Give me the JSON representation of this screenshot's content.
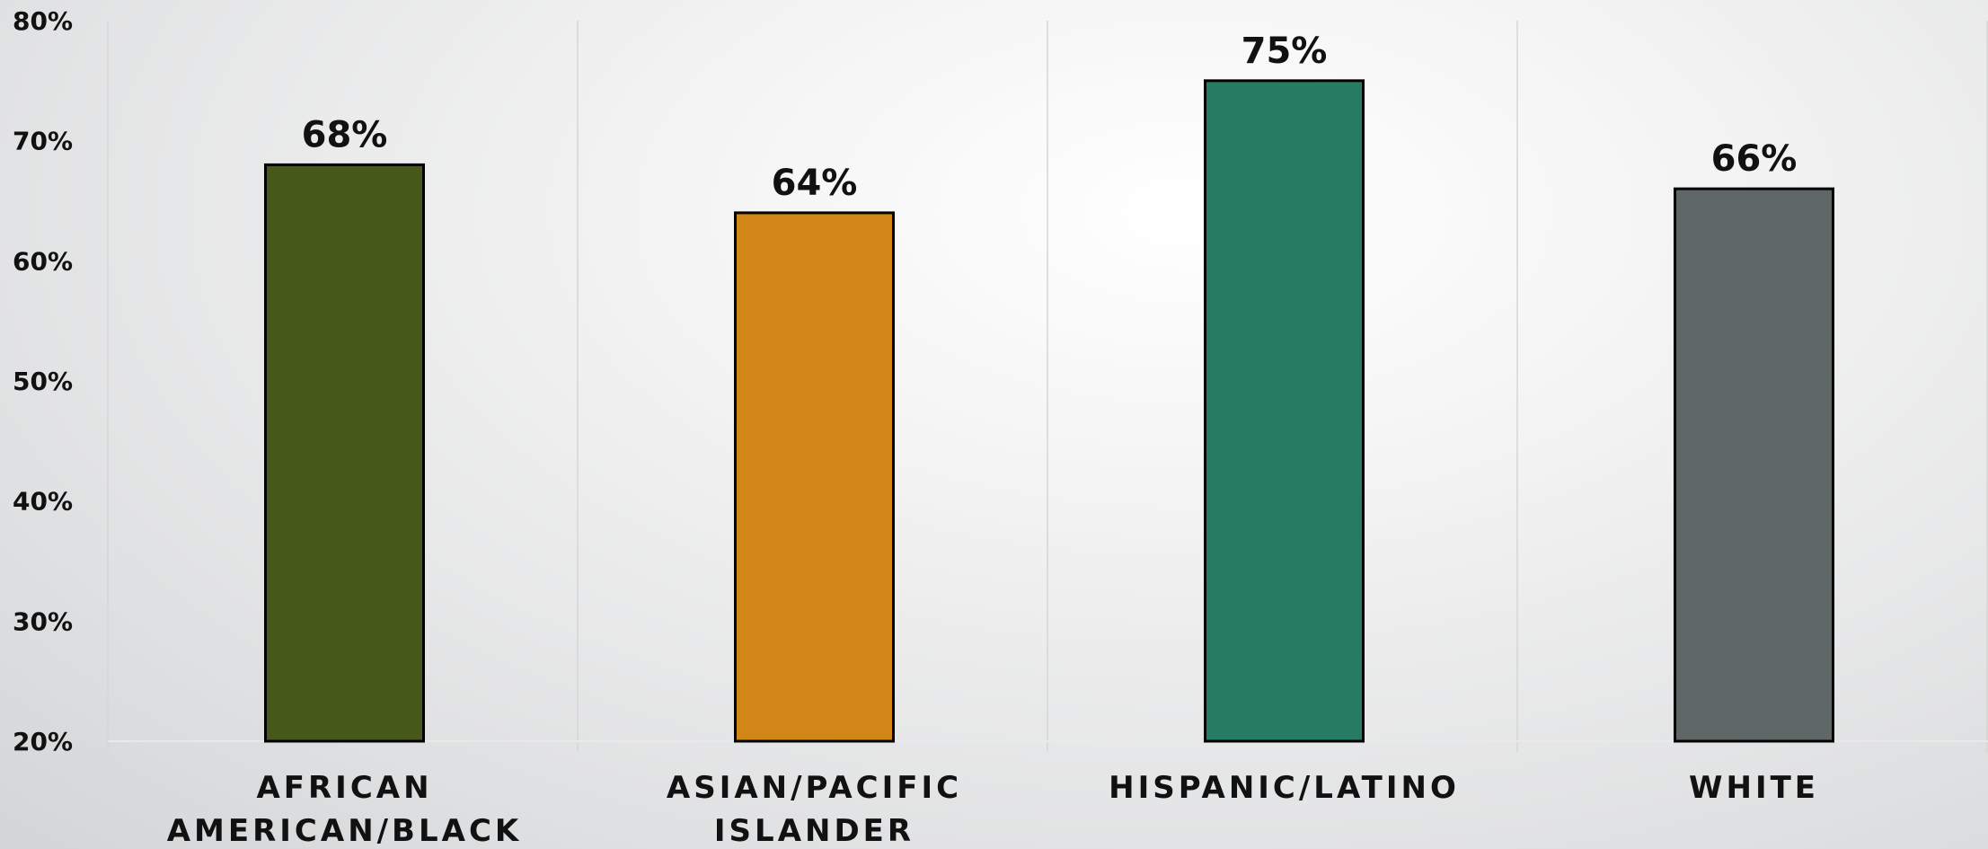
{
  "chart_data": {
    "type": "bar",
    "categories": [
      "AFRICAN AMERICAN/BLACK",
      "ASIAN/PACIFIC ISLANDER",
      "HISPANIC/LATINO",
      "WHITE"
    ],
    "category_label_lines": [
      [
        "AFRICAN",
        "AMERICAN/BLACK"
      ],
      [
        "ASIAN/PACIFIC",
        "ISLANDER"
      ],
      [
        "HISPANIC/LATINO"
      ],
      [
        "WHITE"
      ]
    ],
    "values": [
      68,
      64,
      75,
      66
    ],
    "data_labels": [
      "68%",
      "64%",
      "75%",
      "66%"
    ],
    "bar_colors": [
      "#46581a",
      "#d18618",
      "#267b63",
      "#5f6666"
    ],
    "ylim": [
      20,
      80
    ],
    "yticks": [
      20,
      30,
      40,
      50,
      60,
      70,
      80
    ],
    "ytick_labels": [
      "20%",
      "30%",
      "40%",
      "50%",
      "60%",
      "70%",
      "80%"
    ],
    "title": "",
    "xlabel": "",
    "ylabel": "",
    "grid": "vertical separators",
    "legend": "none"
  }
}
